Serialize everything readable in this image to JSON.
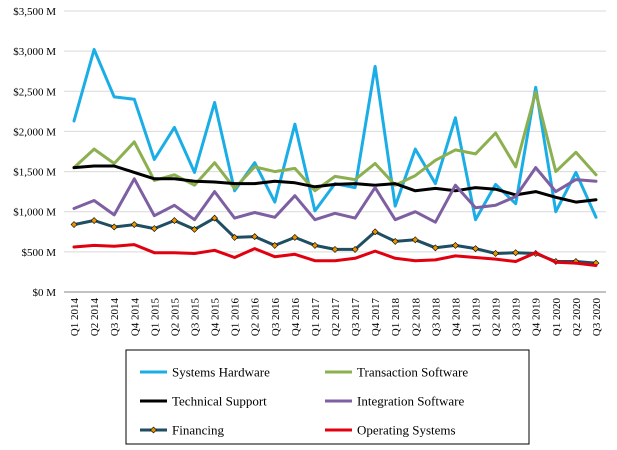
{
  "chart_data": {
    "type": "line",
    "title": "",
    "xlabel": "",
    "ylabel": "",
    "ylim": [
      0,
      3500
    ],
    "y_ticks": [
      "$0 M",
      "$500 M",
      "$1,000 M",
      "$1,500 M",
      "$2,000 M",
      "$2,500 M",
      "$3,000 M",
      "$3,500 M"
    ],
    "y_tick_values": [
      0,
      500,
      1000,
      1500,
      2000,
      2500,
      3000,
      3500
    ],
    "grid": true,
    "legend_position": "bottom",
    "categories": [
      "Q1 2014",
      "Q2 2014",
      "Q3 2014",
      "Q4 2014",
      "Q1 2015",
      "Q2 2015",
      "Q3 2015",
      "Q4 2015",
      "Q1 2016",
      "Q2 2016",
      "Q3 2016",
      "Q4 2016",
      "Q1 2017",
      "Q2 2017",
      "Q3 2017",
      "Q4 2017",
      "Q1 2018",
      "Q2 2018",
      "Q3 2018",
      "Q4 2018",
      "Q1 2019",
      "Q2 2019",
      "Q3 2019",
      "Q4 2019",
      "Q1 2020",
      "Q2 2020",
      "Q3 2020"
    ],
    "series": [
      {
        "name": "Systems Hardware",
        "color": "#1AADE6",
        "marker": false,
        "values": [
          2130,
          3020,
          2430,
          2400,
          1650,
          2050,
          1490,
          2360,
          1260,
          1610,
          1120,
          2090,
          1010,
          1350,
          1300,
          2810,
          1070,
          1780,
          1350,
          2170,
          900,
          1340,
          1100,
          2550,
          1000,
          1490,
          930
        ]
      },
      {
        "name": "Transaction Software",
        "color": "#8CB050",
        "marker": false,
        "values": [
          1550,
          1780,
          1600,
          1870,
          1390,
          1460,
          1330,
          1610,
          1290,
          1560,
          1500,
          1540,
          1260,
          1440,
          1400,
          1600,
          1330,
          1450,
          1640,
          1770,
          1720,
          1980,
          1560,
          2490,
          1500,
          1740,
          1460
        ]
      },
      {
        "name": "Technical Support",
        "color": "#000000",
        "marker": false,
        "values": [
          1550,
          1570,
          1570,
          1490,
          1410,
          1410,
          1380,
          1370,
          1350,
          1350,
          1380,
          1360,
          1310,
          1340,
          1350,
          1330,
          1350,
          1260,
          1290,
          1260,
          1300,
          1280,
          1210,
          1250,
          1180,
          1120,
          1150
        ]
      },
      {
        "name": "Integration Software",
        "color": "#7D5FA2",
        "marker": false,
        "values": [
          1040,
          1140,
          960,
          1410,
          950,
          1080,
          900,
          1250,
          920,
          990,
          930,
          1200,
          900,
          980,
          920,
          1300,
          900,
          1000,
          870,
          1330,
          1050,
          1080,
          1190,
          1550,
          1250,
          1400,
          1380
        ]
      },
      {
        "name": "Financing",
        "color": "#1F4E63",
        "marker": true,
        "marker_color": "#E69500",
        "values": [
          840,
          890,
          810,
          840,
          790,
          890,
          780,
          920,
          680,
          690,
          580,
          680,
          580,
          530,
          530,
          750,
          630,
          650,
          550,
          580,
          540,
          480,
          490,
          480,
          380,
          380,
          360
        ]
      },
      {
        "name": "Operating Systems",
        "color": "#E0000F",
        "marker": false,
        "values": [
          560,
          580,
          570,
          590,
          490,
          490,
          480,
          520,
          430,
          540,
          440,
          470,
          390,
          390,
          420,
          510,
          420,
          390,
          400,
          450,
          430,
          410,
          380,
          490,
          370,
          360,
          330
        ]
      }
    ]
  }
}
